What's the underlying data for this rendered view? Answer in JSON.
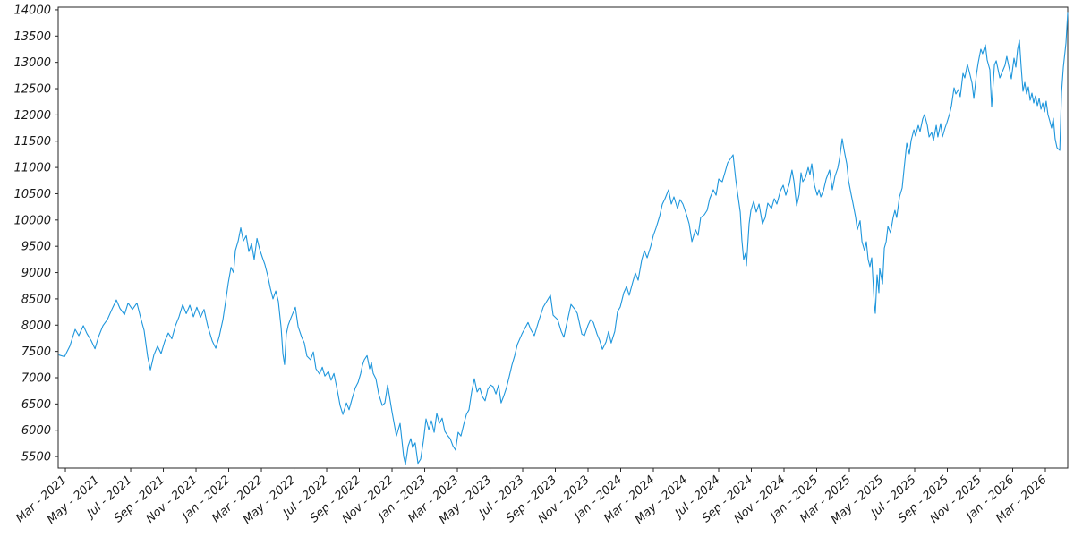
{
  "chart_data": {
    "type": "line",
    "title": "",
    "xlabel": "",
    "ylabel": "",
    "grid": false,
    "legend": null,
    "line_color": "#1e96dc",
    "axis_color": "#262626",
    "y_ticks": [
      5500,
      6000,
      6500,
      7000,
      7500,
      8000,
      8500,
      9000,
      9500,
      10000,
      10500,
      11000,
      11500,
      12000,
      12500,
      13000,
      13500,
      14000
    ],
    "y_axis_range": [
      5280,
      14050
    ],
    "x_tick_labels": [
      "Mar - 2021",
      "May - 2021",
      "Jul - 2021",
      "Sep - 2021",
      "Nov - 2021",
      "Jan - 2022",
      "Mar - 2022",
      "May - 2022",
      "Jul - 2022",
      "Sep - 2022",
      "Nov - 2022",
      "Jan - 2023",
      "Mar - 2023",
      "May - 2023",
      "Jul - 2023",
      "Sep - 2023",
      "Nov - 2023",
      "Jan - 2024",
      "Mar - 2024",
      "May - 2024",
      "Jul - 2024",
      "Sep - 2024",
      "Nov - 2024",
      "Jan - 2025",
      "Mar - 2025",
      "May - 2025",
      "Jul - 2025",
      "Sep - 2025",
      "Nov - 2025",
      "Jan - 2026",
      "Mar - 2026"
    ],
    "x_unit": "months since 2021-03-01",
    "x_tick_positions": [
      0,
      2,
      4,
      6,
      8,
      10,
      12,
      14,
      16,
      18,
      20,
      22,
      24,
      26,
      28,
      30,
      32,
      34,
      36,
      38,
      40,
      42,
      44,
      46,
      48,
      50,
      52,
      54,
      56,
      58,
      60
    ],
    "x_axis_range": [
      -0.44,
      61.37
    ],
    "points": [
      [
        -0.38,
        7430
      ],
      [
        -0.05,
        7400
      ],
      [
        0.27,
        7600
      ],
      [
        0.6,
        7920
      ],
      [
        0.82,
        7800
      ],
      [
        1.1,
        7990
      ],
      [
        1.32,
        7840
      ],
      [
        1.59,
        7700
      ],
      [
        1.81,
        7550
      ],
      [
        2.03,
        7780
      ],
      [
        2.3,
        7990
      ],
      [
        2.58,
        8110
      ],
      [
        2.85,
        8300
      ],
      [
        3.12,
        8480
      ],
      [
        3.34,
        8320
      ],
      [
        3.62,
        8200
      ],
      [
        3.84,
        8420
      ],
      [
        4.11,
        8300
      ],
      [
        4.38,
        8420
      ],
      [
        4.6,
        8150
      ],
      [
        4.82,
        7900
      ],
      [
        5.04,
        7400
      ],
      [
        5.21,
        7150
      ],
      [
        5.42,
        7430
      ],
      [
        5.64,
        7600
      ],
      [
        5.86,
        7460
      ],
      [
        6.08,
        7690
      ],
      [
        6.3,
        7850
      ],
      [
        6.52,
        7740
      ],
      [
        6.74,
        7990
      ],
      [
        6.96,
        8160
      ],
      [
        7.18,
        8390
      ],
      [
        7.4,
        8220
      ],
      [
        7.62,
        8380
      ],
      [
        7.84,
        8160
      ],
      [
        8.05,
        8340
      ],
      [
        8.27,
        8150
      ],
      [
        8.49,
        8300
      ],
      [
        8.71,
        7990
      ],
      [
        8.99,
        7700
      ],
      [
        9.21,
        7560
      ],
      [
        9.42,
        7780
      ],
      [
        9.64,
        8100
      ],
      [
        9.81,
        8450
      ],
      [
        9.97,
        8800
      ],
      [
        10.14,
        9100
      ],
      [
        10.3,
        9000
      ],
      [
        10.41,
        9420
      ],
      [
        10.58,
        9600
      ],
      [
        10.74,
        9850
      ],
      [
        10.9,
        9600
      ],
      [
        11.07,
        9700
      ],
      [
        11.23,
        9400
      ],
      [
        11.4,
        9550
      ],
      [
        11.56,
        9250
      ],
      [
        11.73,
        9650
      ],
      [
        11.89,
        9450
      ],
      [
        12.05,
        9300
      ],
      [
        12.22,
        9150
      ],
      [
        12.38,
        8950
      ],
      [
        12.55,
        8700
      ],
      [
        12.71,
        8500
      ],
      [
        12.88,
        8650
      ],
      [
        13.04,
        8450
      ],
      [
        13.21,
        7950
      ],
      [
        13.32,
        7450
      ],
      [
        13.42,
        7250
      ],
      [
        13.53,
        7830
      ],
      [
        13.64,
        8000
      ],
      [
        13.81,
        8140
      ],
      [
        14.08,
        8340
      ],
      [
        14.25,
        7970
      ],
      [
        14.47,
        7770
      ],
      [
        14.63,
        7660
      ],
      [
        14.79,
        7410
      ],
      [
        15.01,
        7340
      ],
      [
        15.18,
        7490
      ],
      [
        15.34,
        7170
      ],
      [
        15.56,
        7070
      ],
      [
        15.73,
        7200
      ],
      [
        15.89,
        7030
      ],
      [
        16.11,
        7120
      ],
      [
        16.27,
        6950
      ],
      [
        16.44,
        7080
      ],
      [
        16.66,
        6740
      ],
      [
        16.82,
        6470
      ],
      [
        16.99,
        6300
      ],
      [
        17.21,
        6520
      ],
      [
        17.37,
        6390
      ],
      [
        17.53,
        6570
      ],
      [
        17.75,
        6810
      ],
      [
        17.92,
        6910
      ],
      [
        18.08,
        7080
      ],
      [
        18.19,
        7240
      ],
      [
        18.3,
        7340
      ],
      [
        18.47,
        7420
      ],
      [
        18.63,
        7170
      ],
      [
        18.74,
        7290
      ],
      [
        18.85,
        7080
      ],
      [
        19.01,
        6980
      ],
      [
        19.18,
        6690
      ],
      [
        19.4,
        6470
      ],
      [
        19.56,
        6520
      ],
      [
        19.73,
        6860
      ],
      [
        20,
        6350
      ],
      [
        20.27,
        5890
      ],
      [
        20.49,
        6130
      ],
      [
        20.71,
        5500
      ],
      [
        20.82,
        5350
      ],
      [
        20.99,
        5700
      ],
      [
        21.15,
        5840
      ],
      [
        21.26,
        5670
      ],
      [
        21.42,
        5760
      ],
      [
        21.59,
        5370
      ],
      [
        21.75,
        5450
      ],
      [
        21.92,
        5800
      ],
      [
        22.08,
        6215
      ],
      [
        22.25,
        6010
      ],
      [
        22.41,
        6180
      ],
      [
        22.58,
        5960
      ],
      [
        22.74,
        6320
      ],
      [
        22.9,
        6130
      ],
      [
        23.07,
        6230
      ],
      [
        23.23,
        5980
      ],
      [
        23.4,
        5900
      ],
      [
        23.56,
        5840
      ],
      [
        23.73,
        5700
      ],
      [
        23.89,
        5620
      ],
      [
        24.05,
        5960
      ],
      [
        24.22,
        5890
      ],
      [
        24.38,
        6100
      ],
      [
        24.55,
        6300
      ],
      [
        24.71,
        6390
      ],
      [
        24.88,
        6740
      ],
      [
        25.04,
        6980
      ],
      [
        25.21,
        6730
      ],
      [
        25.37,
        6810
      ],
      [
        25.53,
        6640
      ],
      [
        25.7,
        6560
      ],
      [
        25.86,
        6780
      ],
      [
        26.03,
        6860
      ],
      [
        26.19,
        6830
      ],
      [
        26.36,
        6690
      ],
      [
        26.52,
        6860
      ],
      [
        26.68,
        6520
      ],
      [
        26.85,
        6660
      ],
      [
        27.01,
        6810
      ],
      [
        27.18,
        7030
      ],
      [
        27.34,
        7240
      ],
      [
        27.51,
        7420
      ],
      [
        27.67,
        7630
      ],
      [
        27.95,
        7830
      ],
      [
        28.33,
        8050
      ],
      [
        28.49,
        7920
      ],
      [
        28.71,
        7800
      ],
      [
        28.99,
        8090
      ],
      [
        29.26,
        8345
      ],
      [
        29.7,
        8570
      ],
      [
        29.86,
        8190
      ],
      [
        30.14,
        8105
      ],
      [
        30.36,
        7880
      ],
      [
        30.52,
        7770
      ],
      [
        30.68,
        8000
      ],
      [
        30.96,
        8395
      ],
      [
        31.18,
        8310
      ],
      [
        31.34,
        8225
      ],
      [
        31.62,
        7830
      ],
      [
        31.78,
        7800
      ],
      [
        32,
        8000
      ],
      [
        32.16,
        8105
      ],
      [
        32.33,
        8050
      ],
      [
        32.55,
        7830
      ],
      [
        32.71,
        7710
      ],
      [
        32.88,
        7540
      ],
      [
        33.1,
        7680
      ],
      [
        33.26,
        7880
      ],
      [
        33.42,
        7660
      ],
      [
        33.64,
        7880
      ],
      [
        33.81,
        8260
      ],
      [
        33.97,
        8345
      ],
      [
        34.19,
        8617
      ],
      [
        34.36,
        8736
      ],
      [
        34.52,
        8566
      ],
      [
        34.74,
        8821
      ],
      [
        34.9,
        8991
      ],
      [
        35.07,
        8855
      ],
      [
        35.29,
        9247
      ],
      [
        35.45,
        9417
      ],
      [
        35.62,
        9281
      ],
      [
        35.84,
        9502
      ],
      [
        36,
        9706
      ],
      [
        36.16,
        9843
      ],
      [
        36.38,
        10064
      ],
      [
        36.55,
        10300
      ],
      [
        36.71,
        10405
      ],
      [
        36.93,
        10576
      ],
      [
        37.1,
        10303
      ],
      [
        37.26,
        10439
      ],
      [
        37.48,
        10218
      ],
      [
        37.64,
        10388
      ],
      [
        37.81,
        10303
      ],
      [
        38.03,
        10099
      ],
      [
        38.19,
        9928
      ],
      [
        38.36,
        9588
      ],
      [
        38.58,
        9815
      ],
      [
        38.74,
        9706
      ],
      [
        38.9,
        10047
      ],
      [
        39.12,
        10099
      ],
      [
        39.29,
        10184
      ],
      [
        39.45,
        10405
      ],
      [
        39.67,
        10576
      ],
      [
        39.84,
        10473
      ],
      [
        40,
        10780
      ],
      [
        40.22,
        10729
      ],
      [
        40.38,
        10899
      ],
      [
        40.55,
        11087
      ],
      [
        40.88,
        11240
      ],
      [
        41.04,
        10780
      ],
      [
        41.15,
        10524
      ],
      [
        41.32,
        10150
      ],
      [
        41.42,
        9622
      ],
      [
        41.53,
        9247
      ],
      [
        41.64,
        9366
      ],
      [
        41.7,
        9128
      ],
      [
        41.86,
        9928
      ],
      [
        41.97,
        10184
      ],
      [
        42.14,
        10354
      ],
      [
        42.3,
        10150
      ],
      [
        42.47,
        10303
      ],
      [
        42.68,
        9928
      ],
      [
        42.85,
        10047
      ],
      [
        43.01,
        10320
      ],
      [
        43.23,
        10218
      ],
      [
        43.4,
        10405
      ],
      [
        43.56,
        10303
      ],
      [
        43.78,
        10558
      ],
      [
        43.95,
        10661
      ],
      [
        44.11,
        10473
      ],
      [
        44.33,
        10695
      ],
      [
        44.49,
        10950
      ],
      [
        44.6,
        10746
      ],
      [
        44.77,
        10269
      ],
      [
        44.93,
        10490
      ],
      [
        45.04,
        10899
      ],
      [
        45.15,
        10729
      ],
      [
        45.32,
        10814
      ],
      [
        45.48,
        11001
      ],
      [
        45.59,
        10865
      ],
      [
        45.7,
        11070
      ],
      [
        45.86,
        10661
      ],
      [
        46.03,
        10473
      ],
      [
        46.14,
        10576
      ],
      [
        46.25,
        10439
      ],
      [
        46.41,
        10558
      ],
      [
        46.58,
        10780
      ],
      [
        46.79,
        10950
      ],
      [
        46.96,
        10576
      ],
      [
        47.12,
        10831
      ],
      [
        47.29,
        10984
      ],
      [
        47.4,
        11172
      ],
      [
        47.56,
        11547
      ],
      [
        47.67,
        11342
      ],
      [
        47.84,
        11070
      ],
      [
        47.95,
        10746
      ],
      [
        48.11,
        10490
      ],
      [
        48.22,
        10320
      ],
      [
        48.38,
        10064
      ],
      [
        48.49,
        9815
      ],
      [
        48.66,
        9985
      ],
      [
        48.77,
        9588
      ],
      [
        48.93,
        9417
      ],
      [
        49.04,
        9588
      ],
      [
        49.15,
        9247
      ],
      [
        49.26,
        9111
      ],
      [
        49.37,
        9281
      ],
      [
        49.53,
        8396
      ],
      [
        49.59,
        8225
      ],
      [
        49.7,
        8957
      ],
      [
        49.81,
        8617
      ],
      [
        49.86,
        9077
      ],
      [
        50.03,
        8787
      ],
      [
        50.14,
        9468
      ],
      [
        50.25,
        9588
      ],
      [
        50.36,
        9877
      ],
      [
        50.52,
        9758
      ],
      [
        50.68,
        10047
      ],
      [
        50.79,
        10184
      ],
      [
        50.9,
        10047
      ],
      [
        51.07,
        10439
      ],
      [
        51.23,
        10610
      ],
      [
        51.34,
        10950
      ],
      [
        51.51,
        11462
      ],
      [
        51.67,
        11257
      ],
      [
        51.78,
        11513
      ],
      [
        51.95,
        11717
      ],
      [
        52.05,
        11598
      ],
      [
        52.22,
        11802
      ],
      [
        52.33,
        11683
      ],
      [
        52.49,
        11921
      ],
      [
        52.6,
        12006
      ],
      [
        52.77,
        11802
      ],
      [
        52.88,
        11581
      ],
      [
        53.04,
        11666
      ],
      [
        53.15,
        11513
      ],
      [
        53.32,
        11802
      ],
      [
        53.42,
        11581
      ],
      [
        53.59,
        11836
      ],
      [
        53.7,
        11581
      ],
      [
        53.86,
        11751
      ],
      [
        53.97,
        11853
      ],
      [
        54.14,
        12023
      ],
      [
        54.25,
        12177
      ],
      [
        54.41,
        12517
      ],
      [
        54.52,
        12398
      ],
      [
        54.68,
        12483
      ],
      [
        54.79,
        12347
      ],
      [
        54.96,
        12790
      ],
      [
        55.07,
        12704
      ],
      [
        55.23,
        12960
      ],
      [
        55.34,
        12824
      ],
      [
        55.51,
        12602
      ],
      [
        55.62,
        12313
      ],
      [
        55.78,
        12773
      ],
      [
        55.89,
        12994
      ],
      [
        56.05,
        13250
      ],
      [
        56.16,
        13165
      ],
      [
        56.33,
        13335
      ],
      [
        56.44,
        13046
      ],
      [
        56.6,
        12858
      ],
      [
        56.71,
        12150
      ],
      [
        56.88,
        12950
      ],
      [
        56.99,
        13030
      ],
      [
        57.21,
        12705
      ],
      [
        57.37,
        12824
      ],
      [
        57.53,
        12943
      ],
      [
        57.64,
        13114
      ],
      [
        57.81,
        12858
      ],
      [
        57.92,
        12687
      ],
      [
        58.08,
        13080
      ],
      [
        58.19,
        12909
      ],
      [
        58.3,
        13250
      ],
      [
        58.41,
        13420
      ],
      [
        58.52,
        12909
      ],
      [
        58.63,
        12449
      ],
      [
        58.74,
        12619
      ],
      [
        58.85,
        12398
      ],
      [
        58.96,
        12534
      ],
      [
        59.07,
        12279
      ],
      [
        59.18,
        12415
      ],
      [
        59.29,
        12228
      ],
      [
        59.4,
        12364
      ],
      [
        59.51,
        12177
      ],
      [
        59.62,
        12313
      ],
      [
        59.73,
        12109
      ],
      [
        59.84,
        12228
      ],
      [
        59.95,
        12058
      ],
      [
        60.05,
        12262
      ],
      [
        60.16,
        12006
      ],
      [
        60.27,
        11887
      ],
      [
        60.38,
        11751
      ],
      [
        60.49,
        11938
      ],
      [
        60.6,
        11547
      ],
      [
        60.71,
        11376
      ],
      [
        60.88,
        11325
      ],
      [
        60.99,
        12432
      ],
      [
        61.1,
        12909
      ],
      [
        61.26,
        13369
      ],
      [
        61.37,
        13950
      ]
    ]
  }
}
